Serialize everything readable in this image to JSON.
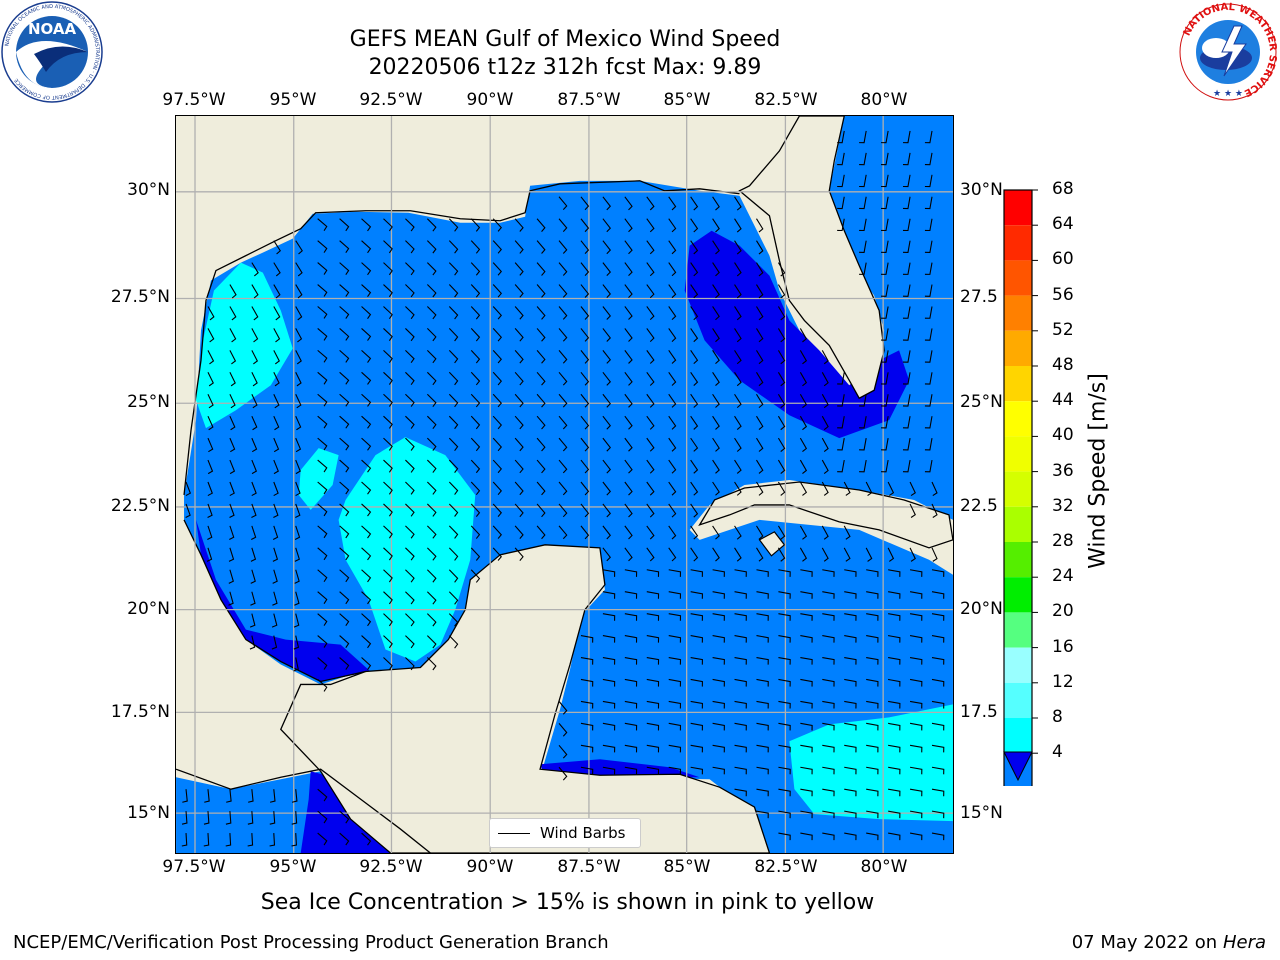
{
  "header": {
    "title_line1": "GEFS MEAN Gulf of Mexico Wind Speed",
    "title_line2": "20220506 t12z 312h fcst   Max: 9.89"
  },
  "logos": {
    "left": {
      "name": "NOAA",
      "ring_text": "NATIONAL OCEANIC AND ATMOSPHERIC ADMINISTRATION · U.S. DEPARTMENT OF COMMERCE"
    },
    "right": {
      "ring_text": "NATIONAL WEATHER SERVICE"
    }
  },
  "map": {
    "lon_labels": [
      "97.5°W",
      "95°W",
      "92.5°W",
      "90°W",
      "87.5°W",
      "85°W",
      "82.5°W",
      "80°W"
    ],
    "lat_labels": [
      "30°N",
      "27.5°N",
      "25°N",
      "22.5°N",
      "20°N",
      "17.5°N",
      "15°N"
    ],
    "lat_labels_right": [
      "30°N",
      "27.5",
      "25°N",
      "22.5",
      "20°N",
      "17.5",
      "15°N"
    ],
    "legend_label": "Wind Barbs",
    "colors": {
      "land": "#efeddc",
      "ocean_base": "#0080ff",
      "ocean_low": "#0000ee",
      "ocean_high": "#00ffff",
      "grid": "#b0b0b0"
    }
  },
  "colorbar": {
    "title": "Wind Speed [m/s]",
    "ticks": [
      "68",
      "64",
      "60",
      "56",
      "52",
      "48",
      "44",
      "40",
      "36",
      "32",
      "28",
      "24",
      "20",
      "16",
      "12",
      "8",
      "4"
    ],
    "colors": [
      "#ff0000",
      "#ff2a00",
      "#ff5500",
      "#ff8000",
      "#ffaa00",
      "#ffd500",
      "#ffff00",
      "#f0ff00",
      "#d5ff00",
      "#aaff00",
      "#55ee00",
      "#00ee00",
      "#55ff80",
      "#99ffff",
      "#55ffff",
      "#00ffff",
      "#0080ff"
    ],
    "extend_color": "#0000ee"
  },
  "footer": {
    "caption": "Sea Ice Concentration > 15% is shown in pink to yellow",
    "left": "NCEP/EMC/Verification Post Processing Product Generation Branch",
    "right_date": "07 May 2022 on",
    "right_host": "Hera"
  }
}
